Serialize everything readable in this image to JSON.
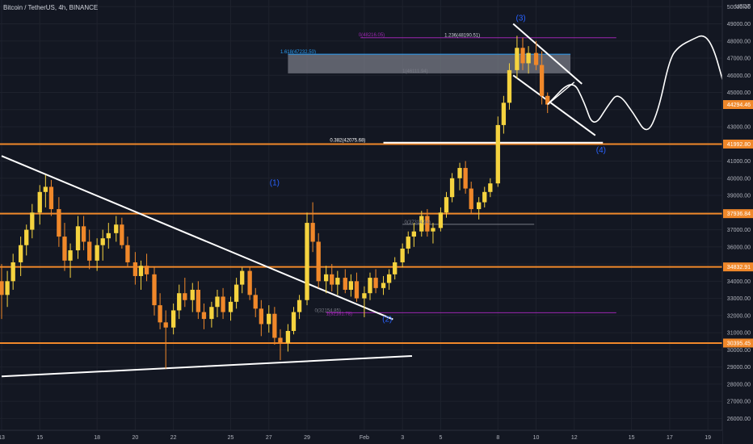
{
  "header": {
    "title": "Bitcoin / TetherUS, 4h, BINANCE"
  },
  "chart_data": {
    "type": "candlestick",
    "title": "Bitcoin / TetherUS, 4h, BINANCE",
    "currency": "USDT",
    "ylim": [
      25500,
      50200
    ],
    "y_ticks": [
      26000,
      27000,
      28000,
      29000,
      30000,
      31000,
      32000,
      33000,
      34000,
      35000,
      36000,
      37000,
      38000,
      39000,
      40000,
      41000,
      42000,
      43000,
      44000,
      45000,
      46000,
      47000,
      48000,
      49000,
      50000
    ],
    "y_tick_labels": [
      "26000.00",
      "27000.00",
      "28000.00",
      "29000.00",
      "30000.00",
      "31000.00",
      "32000.00",
      "33000.00",
      "34000.00",
      "35000.00",
      "36000.00",
      "37000.00",
      "38000.00",
      "39000.00",
      "40000.00",
      "41000.00",
      "42000.00",
      "43000.00",
      "44000.00",
      "45000.00",
      "46000.00",
      "47000.00",
      "48000.00",
      "49000.00",
      "50000.00"
    ],
    "x_tick_labels": [
      "13",
      "15",
      "18",
      "20",
      "22",
      "25",
      "27",
      "29",
      "Feb",
      "3",
      "5",
      "8",
      "10",
      "12",
      "15",
      "17",
      "19"
    ],
    "x_tick_days": [
      13,
      15,
      18,
      20,
      22,
      25,
      27,
      29,
      32,
      34,
      36,
      39,
      41,
      43,
      46,
      48,
      50
    ],
    "x_range_days": [
      13,
      50.5
    ],
    "colors": {
      "up": "#f5d33f",
      "down": "#f0882a",
      "level": "#f0882a",
      "fib": "#9c27b0",
      "fib_blue": "#2a9df4",
      "wave": "#2962ff",
      "trend": "#ffffff"
    },
    "price_levels": [
      {
        "price": 41992.8,
        "label": "41992.80"
      },
      {
        "price": 37936.84,
        "label": "37936.84"
      },
      {
        "price": 34832.91,
        "label": "34832.91"
      },
      {
        "price": 30395.45,
        "label": "30395.45"
      }
    ],
    "current_price": {
      "price": 44294.46,
      "label": "44294.46"
    },
    "fib_annotations": [
      {
        "text": "1.236(48190.51)",
        "price": 48190.51,
        "color": "#d1d4dc"
      },
      {
        "text": "0(48216.05)",
        "price": 48216.05,
        "color": "#9c27b0"
      },
      {
        "text": "1.618(47232.50)",
        "price": 47232.5,
        "color": "#2a9df4"
      },
      {
        "text": "1(46111.94)",
        "price": 46111.94,
        "color": "#787b86"
      },
      {
        "text": "0.382(42075.68)",
        "price": 42075.68,
        "color": "#ffffff"
      },
      {
        "text": "0(37314.94)",
        "price": 37314.94,
        "color": "#787b86"
      },
      {
        "text": "0(32154.85)",
        "price": 32154.85,
        "color": "#787b86"
      },
      {
        "text": "1(32161.78)",
        "price": 32161.78,
        "color": "#9c27b0"
      }
    ],
    "wave_labels": [
      {
        "text": "(1)",
        "day": 27.3,
        "price": 39600
      },
      {
        "text": "(2)",
        "day": 33.2,
        "price": 31650
      },
      {
        "text": "(3)",
        "day": 40.2,
        "price": 49200
      },
      {
        "text": "(4)",
        "day": 44.4,
        "price": 41500
      }
    ],
    "ohlc": [
      [
        13.0,
        34000,
        35000,
        31800,
        33200
      ],
      [
        13.3,
        33200,
        34600,
        32500,
        34000
      ],
      [
        13.6,
        34000,
        35600,
        33500,
        35100
      ],
      [
        14.0,
        35100,
        36600,
        34300,
        36100
      ],
      [
        14.3,
        36100,
        37300,
        35500,
        37000
      ],
      [
        14.6,
        37000,
        38500,
        36500,
        38000
      ],
      [
        15.0,
        38000,
        39600,
        37300,
        39200
      ],
      [
        15.3,
        39200,
        40200,
        38300,
        39500
      ],
      [
        15.6,
        39500,
        39900,
        37800,
        38200
      ],
      [
        16.0,
        38200,
        38900,
        36000,
        36600
      ],
      [
        16.3,
        36600,
        37400,
        34600,
        35200
      ],
      [
        16.6,
        35200,
        36200,
        34200,
        35800
      ],
      [
        17.0,
        35800,
        37800,
        35300,
        37200
      ],
      [
        17.3,
        37200,
        37800,
        35800,
        36300
      ],
      [
        17.6,
        36300,
        37000,
        34700,
        35200
      ],
      [
        18.0,
        35200,
        36500,
        34600,
        36100
      ],
      [
        18.3,
        36100,
        37000,
        35200,
        36500
      ],
      [
        18.6,
        36500,
        37400,
        35900,
        36800
      ],
      [
        19.0,
        36800,
        37800,
        36300,
        37300
      ],
      [
        19.3,
        37300,
        37700,
        35900,
        36100
      ],
      [
        19.6,
        36100,
        36600,
        34800,
        35100
      ],
      [
        20.0,
        35100,
        35700,
        33800,
        34300
      ],
      [
        20.3,
        34300,
        35200,
        33500,
        34900
      ],
      [
        20.6,
        34900,
        35600,
        34000,
        34400
      ],
      [
        21.0,
        34400,
        34800,
        32000,
        32600
      ],
      [
        21.3,
        32600,
        33300,
        31200,
        31600
      ],
      [
        21.6,
        31600,
        32300,
        28900,
        31300
      ],
      [
        22.0,
        31300,
        32700,
        30900,
        32300
      ],
      [
        22.3,
        32300,
        33800,
        31800,
        33300
      ],
      [
        22.6,
        33300,
        34200,
        32500,
        32900
      ],
      [
        23.0,
        32900,
        33900,
        32200,
        33500
      ],
      [
        23.3,
        33500,
        34000,
        31800,
        32200
      ],
      [
        23.6,
        32200,
        32700,
        31200,
        31800
      ],
      [
        24.0,
        31800,
        32800,
        31300,
        32500
      ],
      [
        24.3,
        32500,
        33500,
        31900,
        33100
      ],
      [
        24.6,
        33100,
        33600,
        31800,
        32200
      ],
      [
        25.0,
        32200,
        33100,
        31700,
        32800
      ],
      [
        25.3,
        32800,
        34200,
        32400,
        33800
      ],
      [
        25.6,
        33800,
        34800,
        33300,
        34600
      ],
      [
        26.0,
        34600,
        34800,
        32900,
        33200
      ],
      [
        26.3,
        33200,
        33600,
        31900,
        32400
      ],
      [
        26.6,
        32400,
        32900,
        30800,
        31500
      ],
      [
        27.0,
        31500,
        32600,
        31000,
        32100
      ],
      [
        27.3,
        32100,
        32500,
        30300,
        30700
      ],
      [
        27.6,
        30700,
        31200,
        29400,
        30400
      ],
      [
        28.0,
        30400,
        31500,
        29900,
        31100
      ],
      [
        28.3,
        31100,
        32500,
        30900,
        32200
      ],
      [
        28.6,
        32200,
        33200,
        31800,
        32900
      ],
      [
        29.0,
        32900,
        38000,
        32600,
        37400
      ],
      [
        29.3,
        37400,
        38600,
        35700,
        36300
      ],
      [
        29.6,
        36300,
        36800,
        33600,
        34000
      ],
      [
        30.0,
        34000,
        34900,
        33300,
        34400
      ],
      [
        30.3,
        34400,
        35000,
        33400,
        33800
      ],
      [
        30.6,
        33800,
        34600,
        33200,
        34200
      ],
      [
        31.0,
        34200,
        34700,
        33300,
        33500
      ],
      [
        31.3,
        33500,
        34400,
        33100,
        34000
      ],
      [
        31.6,
        34000,
        34500,
        32800,
        33000
      ],
      [
        32.0,
        33000,
        33700,
        31900,
        33300
      ],
      [
        32.3,
        33300,
        34500,
        32900,
        34200
      ],
      [
        32.6,
        34200,
        34700,
        33300,
        33600
      ],
      [
        33.0,
        33600,
        34300,
        33200,
        33900
      ],
      [
        33.3,
        33900,
        34700,
        33500,
        34400
      ],
      [
        33.6,
        34400,
        35400,
        34100,
        35100
      ],
      [
        34.0,
        35100,
        36200,
        34800,
        35900
      ],
      [
        34.3,
        35900,
        36900,
        35600,
        36600
      ],
      [
        34.6,
        36600,
        37400,
        36000,
        36900
      ],
      [
        35.0,
        36900,
        38100,
        36600,
        37800
      ],
      [
        35.3,
        37800,
        38200,
        36600,
        36900
      ],
      [
        35.6,
        36900,
        37400,
        36200,
        37100
      ],
      [
        36.0,
        37100,
        38300,
        36900,
        38000
      ],
      [
        36.3,
        38000,
        39200,
        37700,
        38900
      ],
      [
        36.6,
        38900,
        40300,
        38600,
        40000
      ],
      [
        37.0,
        40000,
        40900,
        39300,
        40600
      ],
      [
        37.3,
        40600,
        41000,
        39100,
        39400
      ],
      [
        37.6,
        39400,
        39800,
        37900,
        38200
      ],
      [
        38.0,
        38200,
        38900,
        37600,
        38600
      ],
      [
        38.3,
        38600,
        39500,
        38300,
        39200
      ],
      [
        38.6,
        39200,
        40000,
        38900,
        39700
      ],
      [
        39.0,
        39700,
        43600,
        39500,
        43100
      ],
      [
        39.3,
        43100,
        44800,
        42600,
        44400
      ],
      [
        39.6,
        44400,
        46700,
        44000,
        46300
      ],
      [
        40.0,
        46300,
        48300,
        45800,
        47600
      ],
      [
        40.3,
        47600,
        48200,
        46300,
        46700
      ],
      [
        40.6,
        46700,
        47700,
        46100,
        47300
      ],
      [
        41.0,
        47300,
        48000,
        46300,
        46600
      ],
      [
        41.3,
        46600,
        47400,
        44300,
        44800
      ],
      [
        41.6,
        44800,
        45000,
        43800,
        44294
      ]
    ],
    "lines": [
      {
        "name": "upper-trendline",
        "color": "#ffffff",
        "from": [
          13.0,
          41300
        ],
        "to": [
          33.5,
          31780
        ]
      },
      {
        "name": "lower-trendline",
        "color": "#ffffff",
        "from": [
          13.0,
          28450
        ],
        "to": [
          34.5,
          29640
        ]
      },
      {
        "name": "wedge-upper-line",
        "color": "#ffffff",
        "from": [
          39.8,
          49000
        ],
        "to": [
          43.4,
          45500
        ]
      },
      {
        "name": "wedge-lower-line",
        "color": "#ffffff",
        "from": [
          39.8,
          46000
        ],
        "to": [
          44.1,
          42500
        ]
      },
      {
        "name": "fib-level-48190",
        "color": "#9c27b0",
        "from": [
          31.8,
          48190
        ],
        "to": [
          45.2,
          48190
        ]
      },
      {
        "name": "fib-level-32161",
        "color": "#9c27b0",
        "from": [
          30.0,
          32161
        ],
        "to": [
          45.2,
          32161
        ]
      },
      {
        "name": "fib-level-47232",
        "color": "#2a9df4",
        "from": [
          28.0,
          47232
        ],
        "to": [
          42.8,
          47232
        ]
      },
      {
        "name": "fib-level-37314",
        "color": "#787b86",
        "from": [
          34.0,
          37314
        ],
        "to": [
          40.9,
          37314
        ]
      },
      {
        "name": "fib-level-42075",
        "color": "#ffffff",
        "from": [
          33.0,
          42075
        ],
        "to": [
          44.5,
          42075
        ]
      }
    ],
    "zone": {
      "day_from": 28.0,
      "day_to": 42.8,
      "price_top": 47232,
      "price_bottom": 46112
    },
    "projection_path": [
      [
        41.6,
        44300
      ],
      [
        42.9,
        45800
      ],
      [
        43.5,
        44500
      ],
      [
        44.0,
        42900
      ],
      [
        44.8,
        44300
      ],
      [
        45.3,
        45000
      ],
      [
        46.1,
        43800
      ],
      [
        46.8,
        42500
      ],
      [
        47.4,
        43900
      ],
      [
        48.0,
        47000
      ],
      [
        48.5,
        47700
      ],
      [
        49.2,
        48100
      ],
      [
        49.8,
        48400
      ],
      [
        50.3,
        47600
      ],
      [
        50.8,
        45600
      ]
    ],
    "projection_retrace": [
      [
        41.6,
        44300
      ],
      [
        43.0,
        45600
      ]
    ]
  }
}
